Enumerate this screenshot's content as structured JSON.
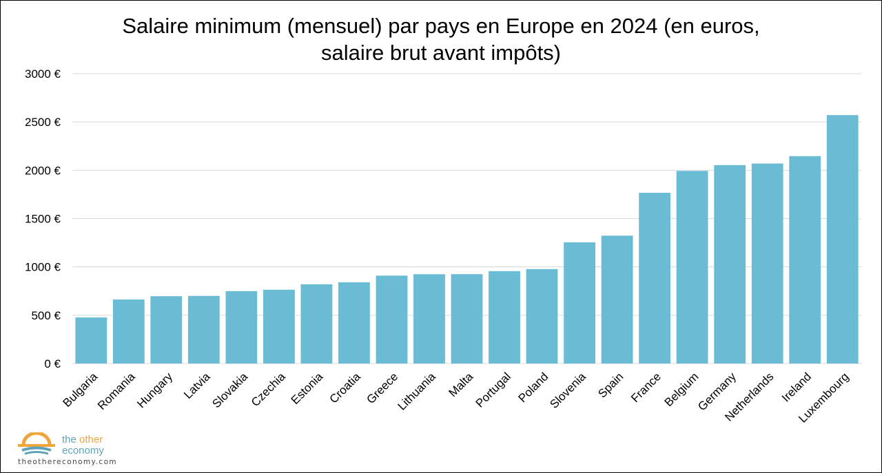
{
  "chart_data": {
    "type": "bar",
    "title_lines": [
      "Salaire minimum (mensuel) par pays en Europe en 2024 (en euros,",
      "salaire brut avant impôts)"
    ],
    "categories": [
      "Bulgaria",
      "Romania",
      "Hungary",
      "Latvia",
      "Slovakia",
      "Czechia",
      "Estonia",
      "Croatia",
      "Greece",
      "Lithuania",
      "Malta",
      "Portugal",
      "Poland",
      "Slovenia",
      "Spain",
      "France",
      "Belgium",
      "Germany",
      "Netherlands",
      "Ireland",
      "Luxembourg"
    ],
    "values": [
      477,
      663,
      697,
      700,
      750,
      764,
      820,
      840,
      910,
      924,
      925,
      956,
      978,
      1254,
      1323,
      1767,
      1994,
      2054,
      2070,
      2146,
      2571
    ],
    "yticks": [
      0,
      500,
      1000,
      1500,
      2000,
      2500,
      3000
    ],
    "ytick_labels": [
      "0 €",
      "500 €",
      "1000 €",
      "1500 €",
      "2000 €",
      "2500 €",
      "3000 €"
    ],
    "ylim": [
      0,
      3000
    ],
    "grid": true,
    "bar_color": "#69bcd4",
    "grid_color": "#d9d9d9"
  },
  "brand": {
    "name_part1": "the ",
    "name_part2": "other",
    "name_line2": "economy",
    "url": "theothereconomy.com",
    "colors": {
      "primary": "#5fa3b9",
      "accent": "#f0a53c"
    }
  }
}
